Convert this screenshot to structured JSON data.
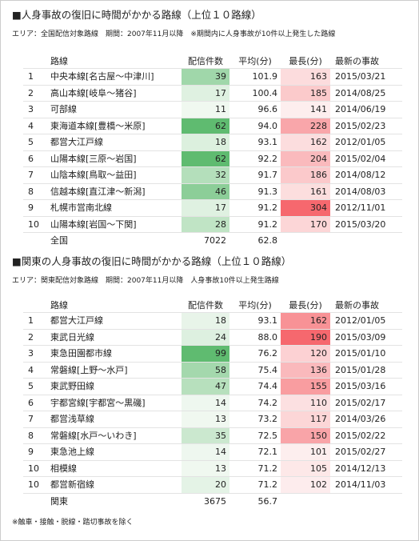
{
  "sections": [
    {
      "title": "■人身事故の復旧に時間がかかる路線（上位１０路線）",
      "note": "エリア：全国配信対象路線　期間：2007年11月以降　※期間内に人身事故が10件以上発生した路線",
      "columns": [
        "路線",
        "配信件数",
        "平均(分)",
        "最長(分)",
        "最新の事故"
      ],
      "rows": [
        [
          "1",
          "中央本線[名古屋～中津川]",
          "39",
          "101.9",
          "163",
          "2015/03/21"
        ],
        [
          "2",
          "高山本線[岐阜～猪谷]",
          "17",
          "100.4",
          "185",
          "2014/08/25"
        ],
        [
          "3",
          "可部線",
          "11",
          "96.6",
          "141",
          "2014/06/19"
        ],
        [
          "4",
          "東海道本線[豊橋～米原]",
          "62",
          "94.0",
          "228",
          "2015/02/23"
        ],
        [
          "5",
          "都営大江戸線",
          "18",
          "93.1",
          "162",
          "2012/01/05"
        ],
        [
          "6",
          "山陽本線[三原～岩国]",
          "62",
          "92.2",
          "204",
          "2015/02/04"
        ],
        [
          "7",
          "山陰本線[鳥取～益田]",
          "32",
          "91.7",
          "186",
          "2014/08/12"
        ],
        [
          "8",
          "信越本線[直江津～新潟]",
          "46",
          "91.3",
          "161",
          "2014/08/03"
        ],
        [
          "9",
          "札幌市営南北線",
          "17",
          "91.2",
          "304",
          "2012/11/01"
        ],
        [
          "10",
          "山陽本線[岩国～下関]",
          "28",
          "91.2",
          "170",
          "2015/03/20"
        ]
      ],
      "total": [
        "全国",
        "7022",
        "62.8"
      ]
    },
    {
      "title": "■関東の人身事故の復旧に時間がかかる路線（上位１０路線）",
      "note": "エリア：関東配信対象路線　期間：2007年11月以降　人身事故10件以上発生路線",
      "columns": [
        "路線",
        "配信件数",
        "平均(分)",
        "最長(分)",
        "最新の事故"
      ],
      "rows": [
        [
          "1",
          "都営大江戸線",
          "18",
          "93.1",
          "162",
          "2012/01/05"
        ],
        [
          "2",
          "東武日光線",
          "24",
          "88.0",
          "190",
          "2015/03/09"
        ],
        [
          "3",
          "東急田園都市線",
          "99",
          "76.2",
          "120",
          "2015/01/10"
        ],
        [
          "4",
          "常磐線[上野～水戸]",
          "58",
          "75.4",
          "136",
          "2015/01/28"
        ],
        [
          "5",
          "東武野田線",
          "47",
          "74.4",
          "155",
          "2015/03/16"
        ],
        [
          "6",
          "宇都宮線[宇都宮～黒磯]",
          "14",
          "74.2",
          "110",
          "2015/02/17"
        ],
        [
          "7",
          "都営浅草線",
          "13",
          "73.2",
          "117",
          "2014/03/26"
        ],
        [
          "8",
          "常磐線[水戸～いわき]",
          "35",
          "72.5",
          "150",
          "2015/02/22"
        ],
        [
          "9",
          "東急池上線",
          "14",
          "72.1",
          "101",
          "2015/02/27"
        ],
        [
          "10",
          "相模線",
          "13",
          "71.2",
          "105",
          "2014/12/13"
        ],
        [
          "10",
          "都営新宿線",
          "20",
          "71.2",
          "102",
          "2014/11/03"
        ]
      ],
      "total": [
        "関東",
        "3675",
        "56.7"
      ]
    }
  ],
  "footnote": "※触車・接触・脱線・踏切事故を除く"
}
